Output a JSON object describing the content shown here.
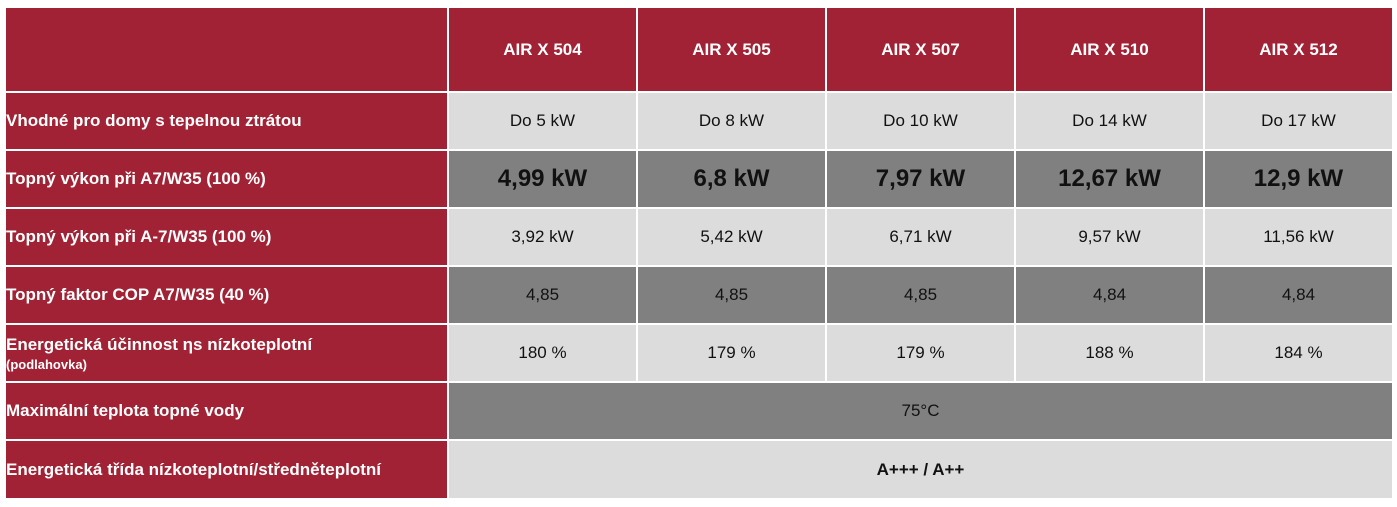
{
  "models": [
    "AIR X 504",
    "AIR X 505",
    "AIR X 507",
    "AIR X 510",
    "AIR X 512"
  ],
  "rows": [
    {
      "label": "Vhodné pro domy s tepelnou ztrátou",
      "values": [
        "Do 5 kW",
        "Do 8 kW",
        "Do 10 kW",
        "Do 14 kW",
        "Do 17  kW"
      ]
    },
    {
      "label": "Topný výkon při A7/W35 (100 %)",
      "values": [
        "4,99 kW",
        "6,8 kW",
        "7,97 kW",
        "12,67 kW",
        "12,9 kW"
      ]
    },
    {
      "label": "Topný výkon při A-7/W35 (100 %)",
      "values": [
        "3,92 kW",
        "5,42 kW",
        "6,71 kW",
        "9,57 kW",
        "11,56 kW"
      ]
    },
    {
      "label": "Topný faktor COP A7/W35 (40 %)",
      "values": [
        "4,85",
        "4,85",
        "4,85",
        "4,84",
        "4,84"
      ]
    },
    {
      "label": "Energetická účinnost ηs nízkoteplotní",
      "sublabel": "(podlahovka)",
      "values": [
        "180 %",
        "179 %",
        "179 %",
        "188 %",
        "184 %"
      ]
    },
    {
      "label": "Maximální teplota topné vody",
      "value": "75°C"
    },
    {
      "label": "Energetická třída nízkoteplotní/středněteplotní",
      "value": "A+++ / A++"
    }
  ],
  "colors": {
    "header": "#a02234",
    "light": "#dcdcdc",
    "dark": "#808080"
  }
}
